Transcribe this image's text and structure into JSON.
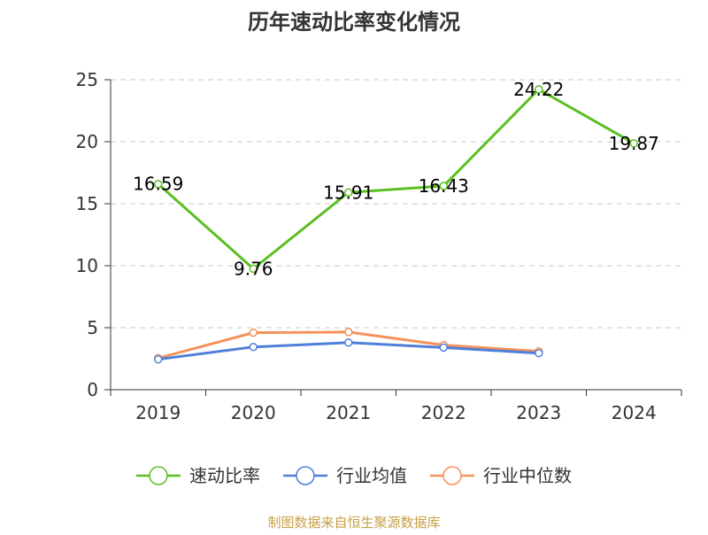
{
  "chart_data": {
    "type": "line",
    "title": "历年速动比率变化情况",
    "categories": [
      "2019",
      "2020",
      "2021",
      "2022",
      "2023",
      "2024"
    ],
    "ylim": [
      0,
      25
    ],
    "yticks": [
      "0",
      "5",
      "10",
      "15",
      "20",
      "25"
    ],
    "grid": true,
    "legend_position": "bottom",
    "series": [
      {
        "name": "速动比率",
        "color": "#5cbf22",
        "values": [
          16.59,
          9.76,
          15.91,
          16.43,
          24.22,
          19.87
        ],
        "labels": [
          "16.59",
          "9.76",
          "15.91",
          "16.43",
          "24.22",
          "19.87"
        ]
      },
      {
        "name": "行业均值",
        "color": "#4f7fd8",
        "values": [
          2.45,
          3.45,
          3.8,
          3.4,
          2.95,
          null
        ]
      },
      {
        "name": "行业中位数",
        "color": "#f5925c",
        "values": [
          2.55,
          4.6,
          4.65,
          3.6,
          3.1,
          null
        ]
      }
    ],
    "source": "制图数据来自恒生聚源数据库"
  }
}
